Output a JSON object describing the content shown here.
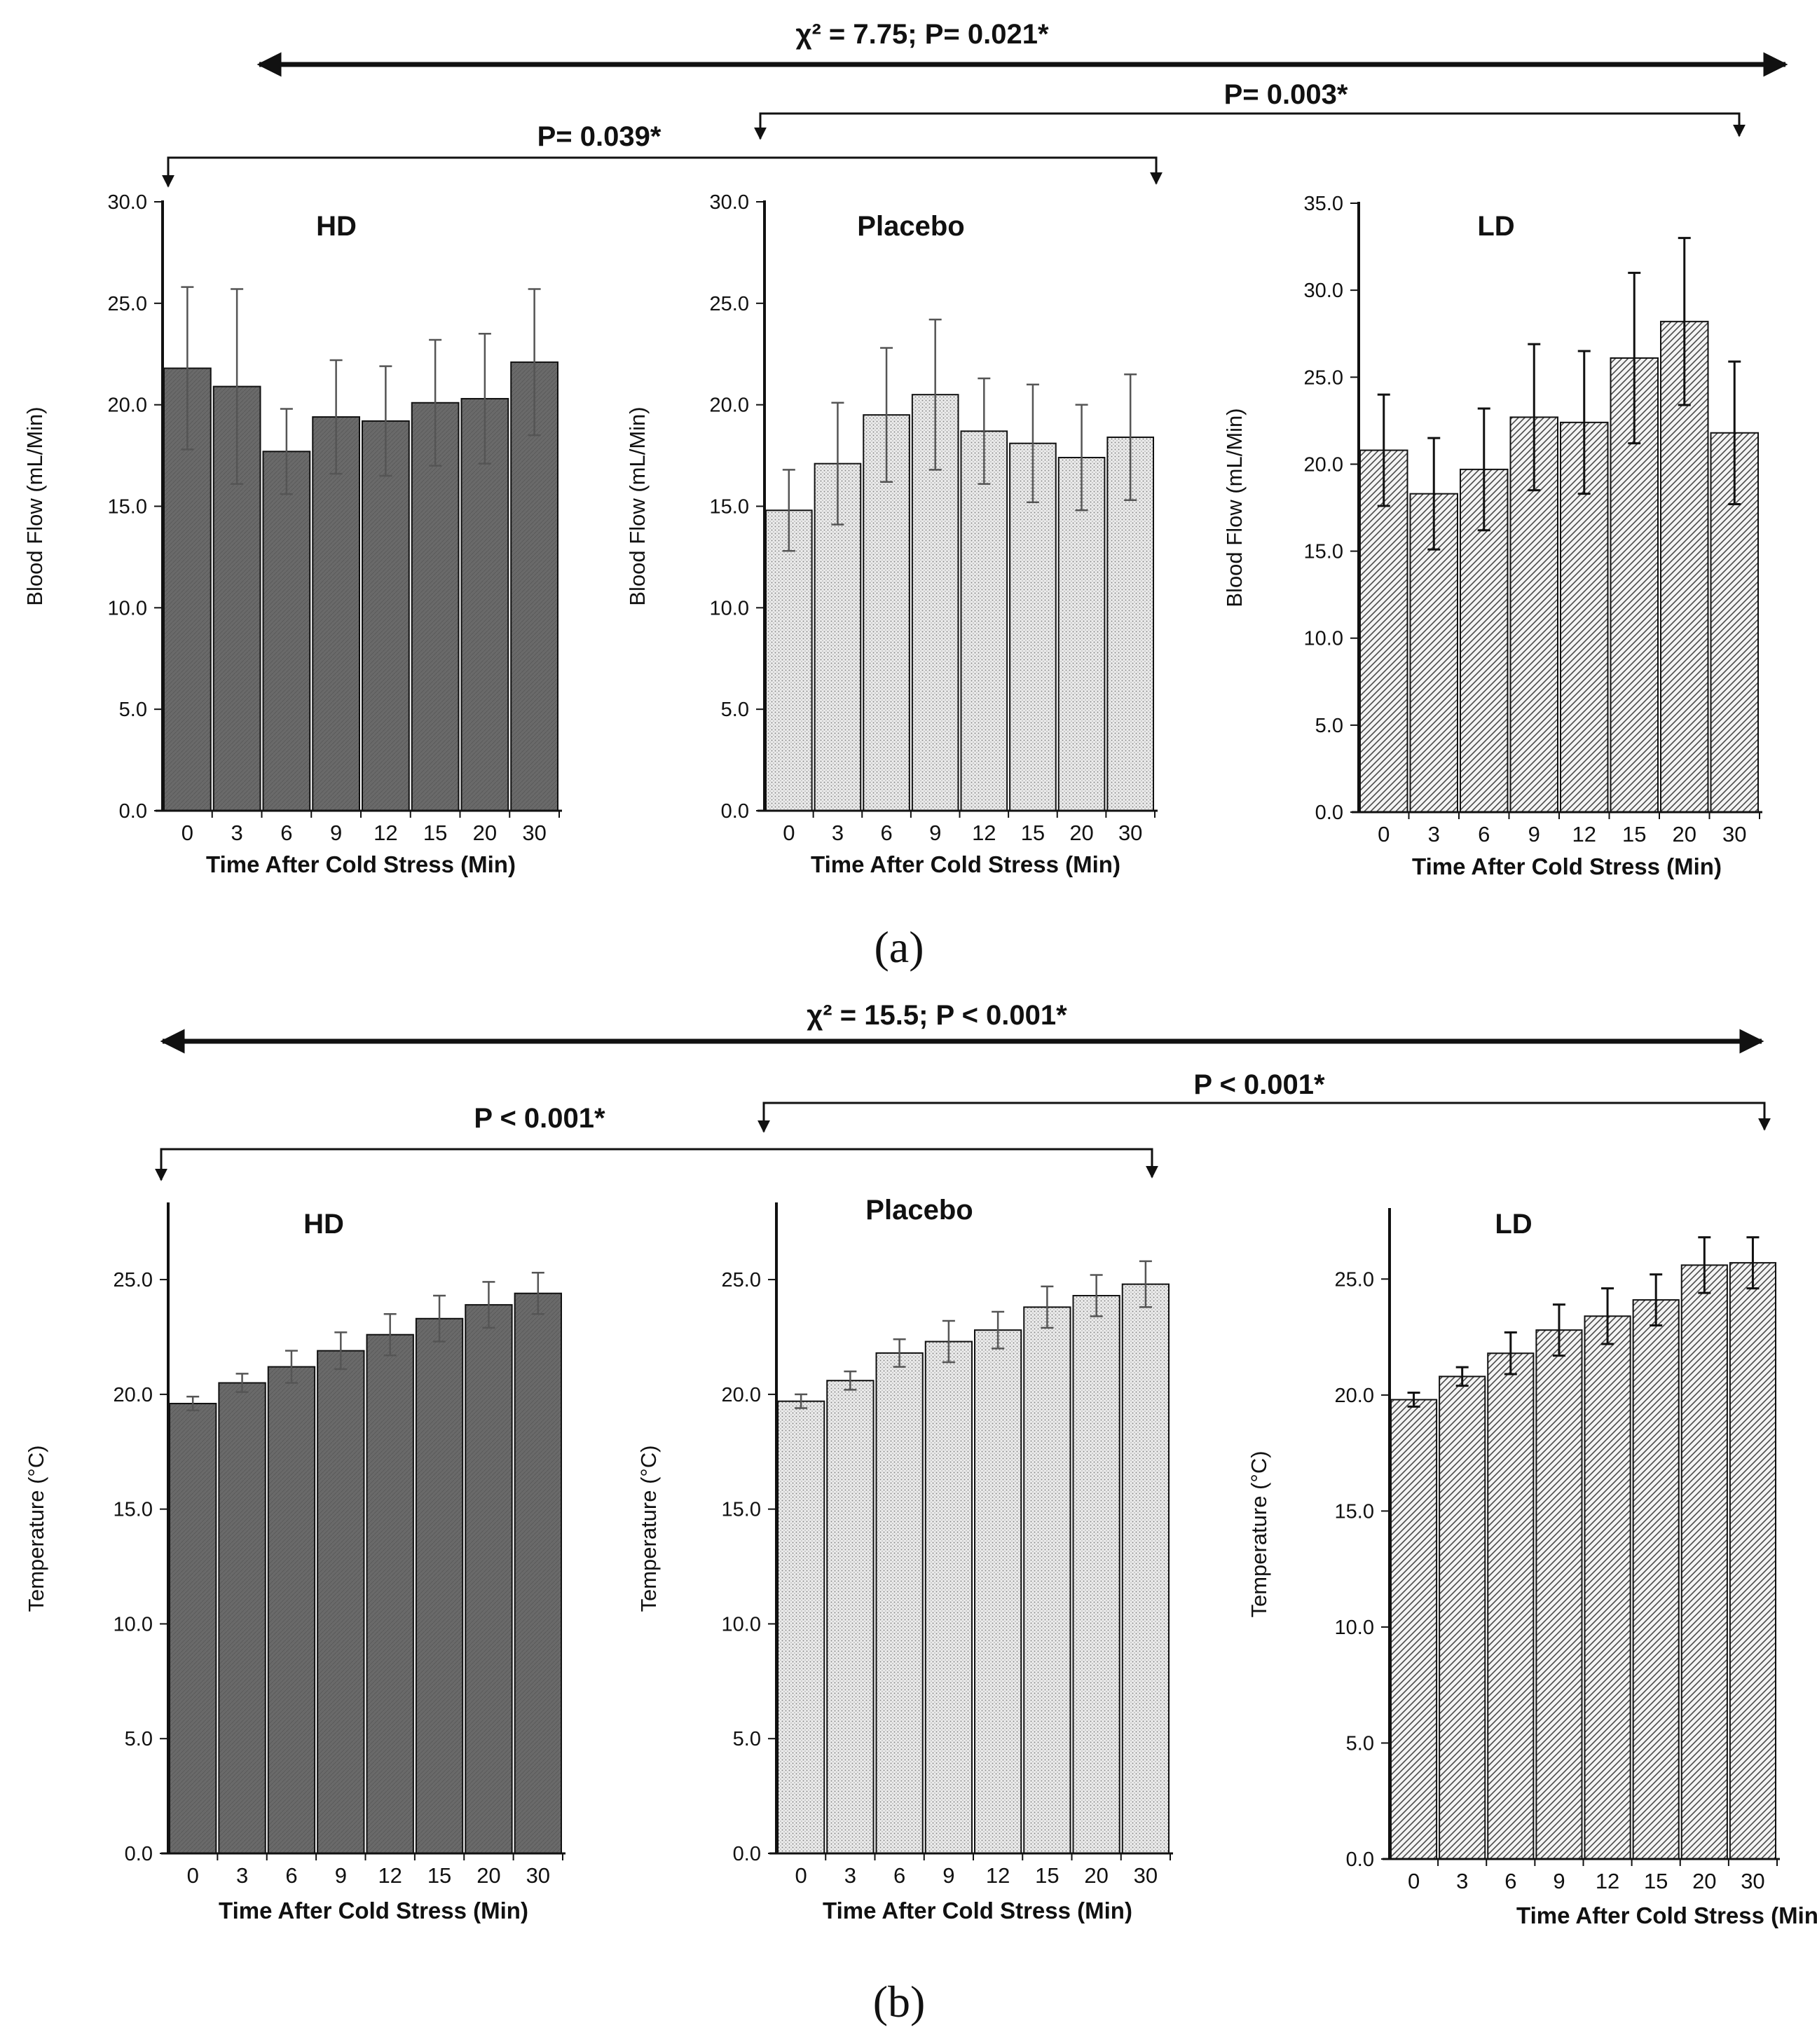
{
  "figure": {
    "label_a": "(a)",
    "label_b": "(b)",
    "annotations_a": {
      "overall": "χ² = 7.75; P= 0.021*",
      "placebo_vs_ld": "P= 0.003*",
      "hd_vs_placebo": "P= 0.039*"
    },
    "annotations_b": {
      "overall": "χ² = 15.5; P < 0.001*",
      "placebo_vs_ld": "P < 0.001*",
      "hd_vs_placebo": "P < 0.001*"
    }
  },
  "chart_data": [
    {
      "type": "bar",
      "row": "a",
      "title": "HD",
      "xlabel": "Time After Cold Stress (Min)",
      "ylabel": "Blood Flow (mL/Min)",
      "categories": [
        "0",
        "3",
        "6",
        "9",
        "12",
        "15",
        "20",
        "30"
      ],
      "values": [
        21.8,
        20.9,
        17.7,
        19.4,
        19.2,
        20.1,
        20.3,
        22.1
      ],
      "errors": [
        4.0,
        4.8,
        2.1,
        2.8,
        2.7,
        3.1,
        3.2,
        3.6
      ],
      "ylim": [
        0,
        30
      ],
      "yticks": [
        "0.0",
        "5.0",
        "10.0",
        "15.0",
        "20.0",
        "25.0",
        "30.0"
      ],
      "fill": "dark"
    },
    {
      "type": "bar",
      "row": "a",
      "title": "Placebo",
      "xlabel": "Time After Cold Stress (Min)",
      "ylabel": "Blood Flow (mL/Min)",
      "categories": [
        "0",
        "3",
        "6",
        "9",
        "12",
        "15",
        "20",
        "30"
      ],
      "values": [
        14.8,
        17.1,
        19.5,
        20.5,
        18.7,
        18.1,
        17.4,
        18.4
      ],
      "errors": [
        2.0,
        3.0,
        3.3,
        3.7,
        2.6,
        2.9,
        2.6,
        3.1
      ],
      "ylim": [
        0,
        30
      ],
      "yticks": [
        "0.0",
        "5.0",
        "10.0",
        "15.0",
        "20.0",
        "25.0",
        "30.0"
      ],
      "fill": "dots"
    },
    {
      "type": "bar",
      "row": "a",
      "title": "LD",
      "xlabel": "Time After Cold Stress (Min)",
      "ylabel": "Blood Flow (mL/Min)",
      "categories": [
        "0",
        "3",
        "6",
        "9",
        "12",
        "15",
        "20",
        "30"
      ],
      "values": [
        20.8,
        18.3,
        19.7,
        22.7,
        22.4,
        26.1,
        28.2,
        21.8
      ],
      "errors": [
        3.2,
        3.2,
        3.5,
        4.2,
        4.1,
        4.9,
        4.8,
        4.1
      ],
      "ylim": [
        0,
        35
      ],
      "yticks": [
        "0.0",
        "5.0",
        "10.0",
        "15.0",
        "20.0",
        "25.0",
        "30.0",
        "35.0"
      ],
      "fill": "hatch"
    },
    {
      "type": "bar",
      "row": "b",
      "title": "HD",
      "xlabel": "Time After Cold Stress (Min)",
      "ylabel": "Temperature (°C)",
      "categories": [
        "0",
        "3",
        "6",
        "9",
        "12",
        "15",
        "20",
        "30"
      ],
      "values": [
        19.6,
        20.5,
        21.2,
        21.9,
        22.6,
        23.3,
        23.9,
        24.4
      ],
      "errors": [
        0.3,
        0.4,
        0.7,
        0.8,
        0.9,
        1.0,
        1.0,
        0.9
      ],
      "ylim": [
        0,
        28.3
      ],
      "yticks": [
        "0.0",
        "5.0",
        "10.0",
        "15.0",
        "20.0",
        "25.0"
      ],
      "fill": "dark"
    },
    {
      "type": "bar",
      "row": "b",
      "title": "Placebo",
      "xlabel": "Time After Cold Stress (Min)",
      "ylabel": "Temperature (°C)",
      "categories": [
        "0",
        "3",
        "6",
        "9",
        "12",
        "15",
        "20",
        "30"
      ],
      "values": [
        19.7,
        20.6,
        21.8,
        22.3,
        22.8,
        23.8,
        24.3,
        24.8
      ],
      "errors": [
        0.3,
        0.4,
        0.6,
        0.9,
        0.8,
        0.9,
        0.9,
        1.0
      ],
      "ylim": [
        0,
        28.3
      ],
      "yticks": [
        "0.0",
        "5.0",
        "10.0",
        "15.0",
        "20.0",
        "25.0"
      ],
      "fill": "dots"
    },
    {
      "type": "bar",
      "row": "b",
      "title": "LD",
      "xlabel": "Time After Cold Stress (Min)",
      "ylabel": "Temperature (°C)",
      "categories": [
        "0",
        "3",
        "6",
        "9",
        "12",
        "15",
        "20",
        "30"
      ],
      "values": [
        19.8,
        20.8,
        21.8,
        22.8,
        23.4,
        24.1,
        25.6,
        25.7
      ],
      "errors": [
        0.3,
        0.4,
        0.9,
        1.1,
        1.2,
        1.1,
        1.2,
        1.1
      ],
      "ylim": [
        0,
        28.0
      ],
      "yticks": [
        "0.0",
        "5.0",
        "10.0",
        "15.0",
        "20.0",
        "25.0"
      ],
      "fill": "hatch"
    }
  ]
}
